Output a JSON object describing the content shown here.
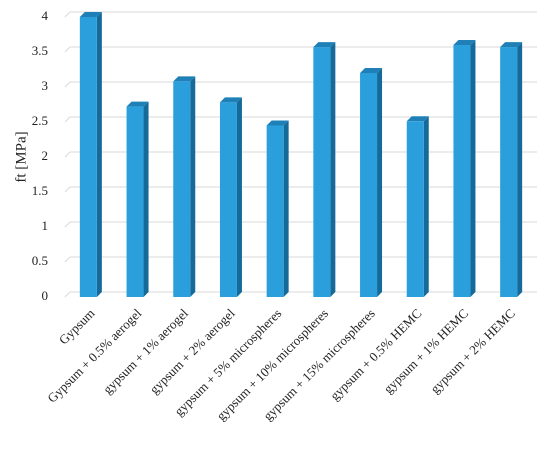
{
  "chart_data": {
    "type": "bar",
    "y_label": "ft [MPa]",
    "categories": [
      "Gypsum",
      "Gypsum + 0.5% aerogel",
      "gypsum + 1% aerogel",
      "gypsum + 2% aerogel",
      "gypsum + 5% microspheres",
      "gypsum + 10% microspheres",
      "gypsum + 15% microspheres",
      "gypsum + 0.5% HEMC",
      "gypsum + 1% HEMC",
      "gypsum + 2% HEMC"
    ],
    "values": [
      4.0,
      2.72,
      3.08,
      2.78,
      2.45,
      3.57,
      3.2,
      2.51,
      3.6,
      3.57
    ],
    "color": "#2b9fdb",
    "ylim": [
      0,
      4
    ],
    "yticks": [
      0,
      0.5,
      1,
      1.5,
      2,
      2.5,
      3,
      3.5,
      4
    ],
    "grid": true
  }
}
